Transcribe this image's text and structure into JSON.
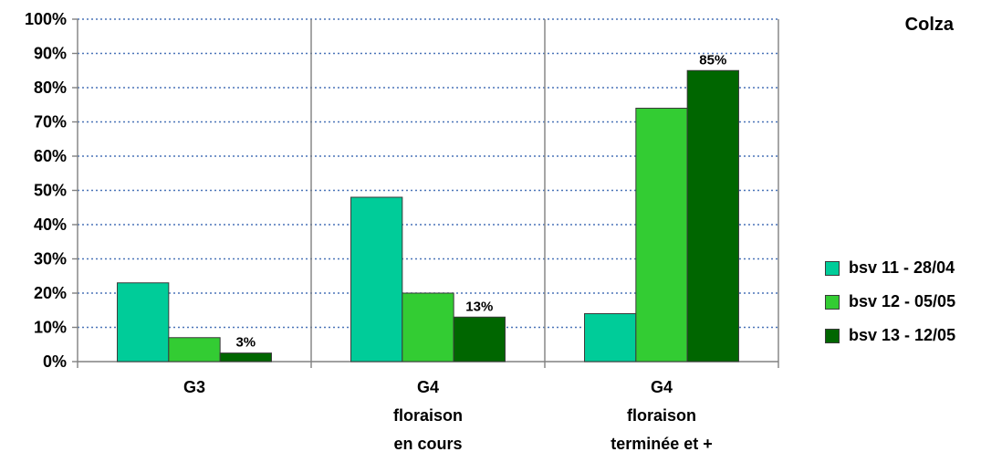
{
  "chart_data": {
    "type": "bar",
    "title": "Colza",
    "categories": [
      [
        "G3"
      ],
      [
        "G4",
        "floraison",
        "en cours"
      ],
      [
        "G4",
        "floraison",
        "terminée et +"
      ]
    ],
    "series": [
      {
        "name": "bsv 11 - 28/04",
        "color": "#00cc99",
        "values": [
          23,
          48,
          14
        ]
      },
      {
        "name": "bsv 12 - 05/05",
        "color": "#33cc33",
        "values": [
          7,
          20,
          74
        ]
      },
      {
        "name": "bsv 13 - 12/05",
        "color": "#006600",
        "values": [
          2.5,
          13,
          85
        ]
      }
    ],
    "data_labels": [
      {
        "series": 2,
        "category": 0,
        "text": "3%"
      },
      {
        "series": 2,
        "category": 1,
        "text": "13%"
      },
      {
        "series": 2,
        "category": 2,
        "text": "85%"
      }
    ],
    "ylim": [
      0,
      100
    ],
    "yticks": [
      "0%",
      "10%",
      "20%",
      "30%",
      "40%",
      "50%",
      "60%",
      "70%",
      "80%",
      "90%",
      "100%"
    ],
    "grid": true,
    "legend_position": "right"
  }
}
